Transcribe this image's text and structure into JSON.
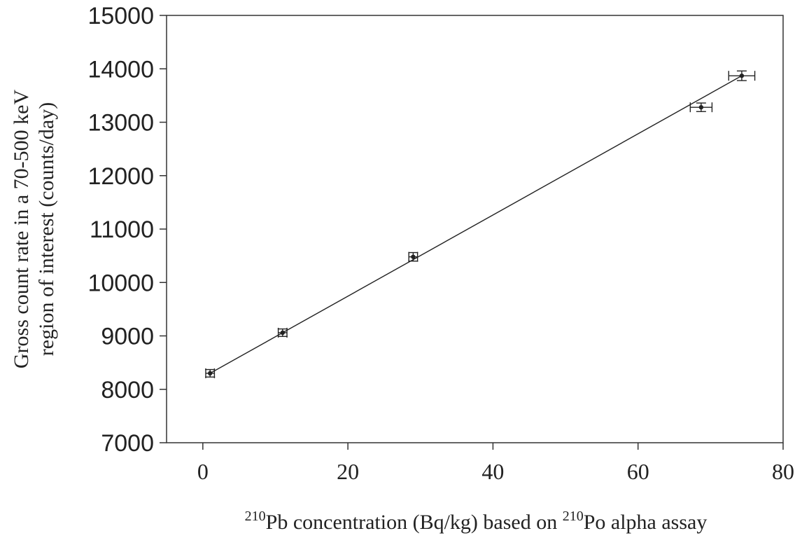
{
  "chart_data": {
    "type": "scatter",
    "xlabel_parts": {
      "sup1": "210",
      "text1": "Pb concentration (Bq/kg) based on ",
      "sup2": "210",
      "text2": "Po alpha assay"
    },
    "ylabel_line1": "Gross count rate in a 70-500 keV",
    "ylabel_line2": "region of interest (counts/day)",
    "xlim": [
      -5,
      80
    ],
    "ylim": [
      7000,
      15000
    ],
    "xticks": [
      0,
      20,
      40,
      60,
      80
    ],
    "yticks": [
      7000,
      8000,
      9000,
      10000,
      11000,
      12000,
      13000,
      14000,
      15000
    ],
    "points": [
      {
        "x": 1.0,
        "y": 8300,
        "xerr": 0.6,
        "yerr": 70
      },
      {
        "x": 11.0,
        "y": 9060,
        "xerr": 0.6,
        "yerr": 70
      },
      {
        "x": 29.0,
        "y": 10480,
        "xerr": 0.6,
        "yerr": 80
      },
      {
        "x": 68.7,
        "y": 13280,
        "xerr": 1.5,
        "yerr": 80
      },
      {
        "x": 74.3,
        "y": 13870,
        "xerr": 1.8,
        "yerr": 90
      }
    ],
    "fit_line": {
      "x": [
        1.0,
        74.3
      ],
      "y": [
        8300,
        13870
      ]
    },
    "grid": false,
    "legend": "none"
  }
}
